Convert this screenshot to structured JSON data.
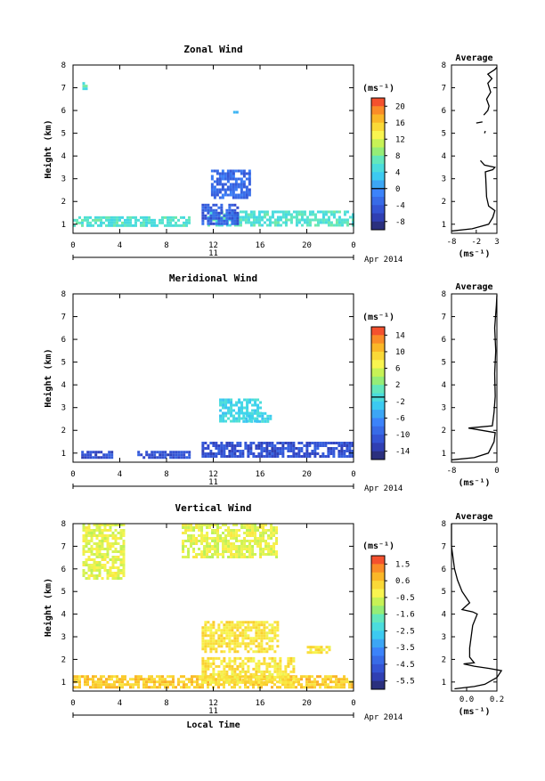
{
  "chart_data": [
    {
      "type": "heatmap",
      "title": "Zonal Wind",
      "xlabel": "",
      "ylabel": "Height (km)",
      "xticks": [
        "0",
        "4",
        "8",
        "12",
        "16",
        "20",
        "0"
      ],
      "yticks": [
        "1",
        "2",
        "3",
        "4",
        "5",
        "6",
        "7",
        "8"
      ],
      "ylim": [
        0.6,
        8.0
      ],
      "xlim": [
        0,
        24
      ],
      "date_day": "11",
      "date_label": "Apr 2014",
      "colorbar": {
        "unit": "(ms⁻¹)",
        "ticks": [
          "20",
          "16",
          "12",
          "8",
          "4",
          "0",
          "-4",
          "-8"
        ],
        "range": [
          -10,
          22
        ],
        "zero_line": 0
      },
      "patches": [
        {
          "x": [
            0,
            10
          ],
          "y": [
            0.9,
            1.35
          ],
          "value": 6,
          "desc": "light-blue band"
        },
        {
          "x": [
            11.5,
            24
          ],
          "y": [
            0.9,
            1.6
          ],
          "value": 6,
          "desc": "light-blue band"
        },
        {
          "x": [
            11,
            14
          ],
          "y": [
            1.0,
            1.9
          ],
          "value": -4,
          "desc": "dark-blue patch"
        },
        {
          "x": [
            11.8,
            15.2
          ],
          "y": [
            2.2,
            3.4
          ],
          "value": -3,
          "desc": "blue patch"
        },
        {
          "x": [
            0.8,
            1.2
          ],
          "y": [
            7.0,
            7.25
          ],
          "value": 6
        },
        {
          "x": [
            13.7,
            14.0
          ],
          "y": [
            5.9,
            6.1
          ],
          "value": 0
        }
      ],
      "average": {
        "title": "Average",
        "xlabel": "(ms⁻¹)",
        "xticks": [
          "-8",
          "-2",
          "3"
        ],
        "xlim": [
          -8,
          3
        ],
        "profile": [
          [
            -8,
            0.7
          ],
          [
            -3,
            0.8
          ],
          [
            1,
            1.0
          ],
          [
            2,
            1.3
          ],
          [
            2.5,
            1.6
          ],
          [
            1,
            1.8
          ],
          [
            0.5,
            2.2
          ],
          [
            0.3,
            3.0
          ],
          [
            0.2,
            3.3
          ],
          [
            2,
            3.4
          ],
          [
            2.5,
            3.5
          ],
          [
            0,
            3.6
          ],
          [
            -1,
            3.8
          ]
        ],
        "segments": [
          [
            [
              -2,
              5.45
            ],
            [
              -0.5,
              5.5
            ]
          ],
          [
            [
              0,
              5.0
            ],
            [
              0.2,
              5.1
            ]
          ],
          [
            [
              -0.2,
              5.8
            ],
            [
              0.8,
              6.0
            ],
            [
              1.1,
              6.2
            ],
            [
              0.5,
              6.5
            ],
            [
              1.5,
              6.8
            ],
            [
              0.8,
              7.2
            ],
            [
              1.8,
              7.4
            ],
            [
              0.8,
              7.6
            ],
            [
              2.5,
              7.8
            ],
            [
              3,
              7.9
            ]
          ]
        ]
      }
    },
    {
      "type": "heatmap",
      "title": "Meridional Wind",
      "xlabel": "",
      "ylabel": "Height (km)",
      "xticks": [
        "0",
        "4",
        "8",
        "12",
        "16",
        "20",
        "0"
      ],
      "yticks": [
        "1",
        "2",
        "3",
        "4",
        "5",
        "6",
        "7",
        "8"
      ],
      "ylim": [
        0.6,
        8.0
      ],
      "xlim": [
        0,
        24
      ],
      "date_day": "11",
      "date_label": "Apr 2014",
      "colorbar": {
        "unit": "(ms⁻¹)",
        "ticks": [
          "14",
          "10",
          "6",
          "2",
          "-2",
          "-6",
          "-10",
          "-14"
        ],
        "range": [
          -16,
          18
        ],
        "zero_line": 0
      },
      "patches": [
        {
          "x": [
            0.7,
            3.3
          ],
          "y": [
            0.85,
            1.1
          ],
          "value": -11
        },
        {
          "x": [
            5.5,
            10
          ],
          "y": [
            0.85,
            1.1
          ],
          "value": -11
        },
        {
          "x": [
            11,
            24
          ],
          "y": [
            0.85,
            1.5
          ],
          "value": -11
        },
        {
          "x": [
            12.5,
            16
          ],
          "y": [
            2.4,
            3.4
          ],
          "value": -1,
          "desc": "cyan patch"
        },
        {
          "x": [
            14.5,
            16.8
          ],
          "y": [
            2.4,
            2.8
          ],
          "value": -1
        }
      ],
      "average": {
        "title": "Average",
        "xlabel": "(ms⁻¹)",
        "xticks": [
          "-8",
          "0"
        ],
        "xlim": [
          -8,
          0
        ],
        "profile": [
          [
            -8,
            0.7
          ],
          [
            -4,
            0.8
          ],
          [
            -1.5,
            1.0
          ],
          [
            -0.5,
            1.5
          ],
          [
            -0.3,
            1.9
          ],
          [
            -5,
            2.1
          ],
          [
            -0.8,
            2.2
          ],
          [
            -0.5,
            2.8
          ],
          [
            -0.3,
            3.5
          ],
          [
            -0.4,
            4.5
          ],
          [
            -0.2,
            5.5
          ],
          [
            -0.4,
            6.5
          ],
          [
            -0.1,
            7.5
          ],
          [
            0,
            7.95
          ]
        ]
      }
    },
    {
      "type": "heatmap",
      "title": "Vertical Wind",
      "xlabel": "Local Time",
      "ylabel": "Height (km)",
      "xticks": [
        "0",
        "4",
        "8",
        "12",
        "16",
        "20",
        "0"
      ],
      "yticks": [
        "1",
        "2",
        "3",
        "4",
        "5",
        "6",
        "7",
        "8"
      ],
      "ylim": [
        0.6,
        8.0
      ],
      "xlim": [
        0,
        24
      ],
      "date_day": "11",
      "date_label": "Apr 2014",
      "colorbar": {
        "unit": "(ms⁻¹)",
        "ticks": [
          "1.5",
          "0.6",
          "-0.5",
          "-1.6",
          "-2.5",
          "-3.5",
          "-4.5",
          "-5.5"
        ],
        "range": [
          -6,
          2.2
        ]
      },
      "patches": [
        {
          "x": [
            0,
            24
          ],
          "y": [
            0.8,
            1.3
          ],
          "value": 0.6,
          "desc": "orange band"
        },
        {
          "x": [
            11,
            19
          ],
          "y": [
            1.0,
            2.1
          ],
          "value": 0.2
        },
        {
          "x": [
            11,
            17.5
          ],
          "y": [
            2.4,
            3.7
          ],
          "value": 0.2
        },
        {
          "x": [
            0.8,
            4.3
          ],
          "y": [
            5.6,
            8.0
          ],
          "value": -0.3,
          "desc": "yellow specks"
        },
        {
          "x": [
            9.3,
            17.5
          ],
          "y": [
            6.5,
            8.0
          ],
          "value": -0.3
        },
        {
          "x": [
            20,
            22
          ],
          "y": [
            2.3,
            2.6
          ],
          "value": 0.2
        }
      ],
      "average": {
        "title": "Average",
        "xlabel": "(ms⁻¹)",
        "xticks": [
          "0.0",
          "0.2"
        ],
        "xlim": [
          -0.1,
          0.2
        ],
        "profile": [
          [
            -0.08,
            0.7
          ],
          [
            0.05,
            0.8
          ],
          [
            0.12,
            0.9
          ],
          [
            0.2,
            1.2
          ],
          [
            0.23,
            1.5
          ],
          [
            0.15,
            1.6
          ],
          [
            0.05,
            1.7
          ],
          [
            -0.02,
            1.8
          ],
          [
            0.05,
            1.85
          ],
          [
            0.02,
            2.1
          ],
          [
            0.02,
            2.5
          ],
          [
            0.03,
            3.0
          ],
          [
            0.04,
            3.5
          ],
          [
            0.07,
            4.0
          ],
          [
            0.04,
            4.1
          ],
          [
            -0.03,
            4.2
          ],
          [
            0.02,
            4.5
          ],
          [
            -0.03,
            5.0
          ],
          [
            -0.06,
            5.5
          ],
          [
            -0.08,
            6.0
          ],
          [
            -0.09,
            6.5
          ],
          [
            -0.1,
            7.0
          ],
          [
            -0.1,
            8.0
          ]
        ]
      }
    }
  ]
}
